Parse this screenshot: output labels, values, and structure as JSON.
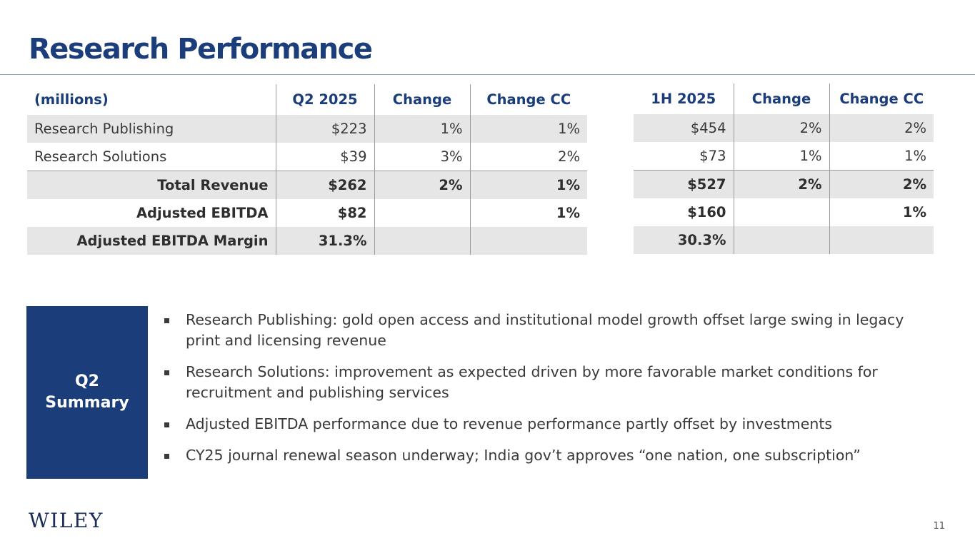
{
  "title": "Research Performance",
  "left_table": {
    "headers": [
      "(millions)",
      "Q2 2025",
      "Change",
      "Change CC"
    ],
    "rows": [
      [
        "Research Publishing",
        "$223",
        "1%",
        "1%"
      ],
      [
        "Research Solutions",
        "$39",
        "3%",
        "2%"
      ],
      [
        "Total Revenue",
        "$262",
        "2%",
        "1%"
      ],
      [
        "Adjusted EBITDA",
        "$82",
        "",
        "1%"
      ],
      [
        "Adjusted EBITDA Margin",
        "31.3%",
        "",
        ""
      ]
    ]
  },
  "right_table": {
    "headers": [
      "1H 2025",
      "Change",
      "Change CC"
    ],
    "rows": [
      [
        "$454",
        "2%",
        "2%"
      ],
      [
        "$73",
        "1%",
        "1%"
      ],
      [
        "$527",
        "2%",
        "2%"
      ],
      [
        "$160",
        "",
        "1%"
      ],
      [
        "30.3%",
        "",
        ""
      ]
    ]
  },
  "summary": {
    "label_line1": "Q2",
    "label_line2": "Summary",
    "bullets": [
      "Research Publishing: gold open access and institutional model growth offset large swing in legacy print and licensing revenue",
      "Research Solutions: improvement as expected driven by more favorable market conditions for recruitment and publishing services",
      "Adjusted EBITDA performance due to revenue performance partly offset by investments",
      "CY25 journal renewal season underway; India gov’t approves “one nation, one subscription”"
    ]
  },
  "footer": {
    "logo_text": "WILEY",
    "page_number": "11"
  },
  "colors": {
    "brand_navy": "#1b3d7a",
    "row_shade": "#e6e6e6",
    "text": "#3a3a3a"
  }
}
